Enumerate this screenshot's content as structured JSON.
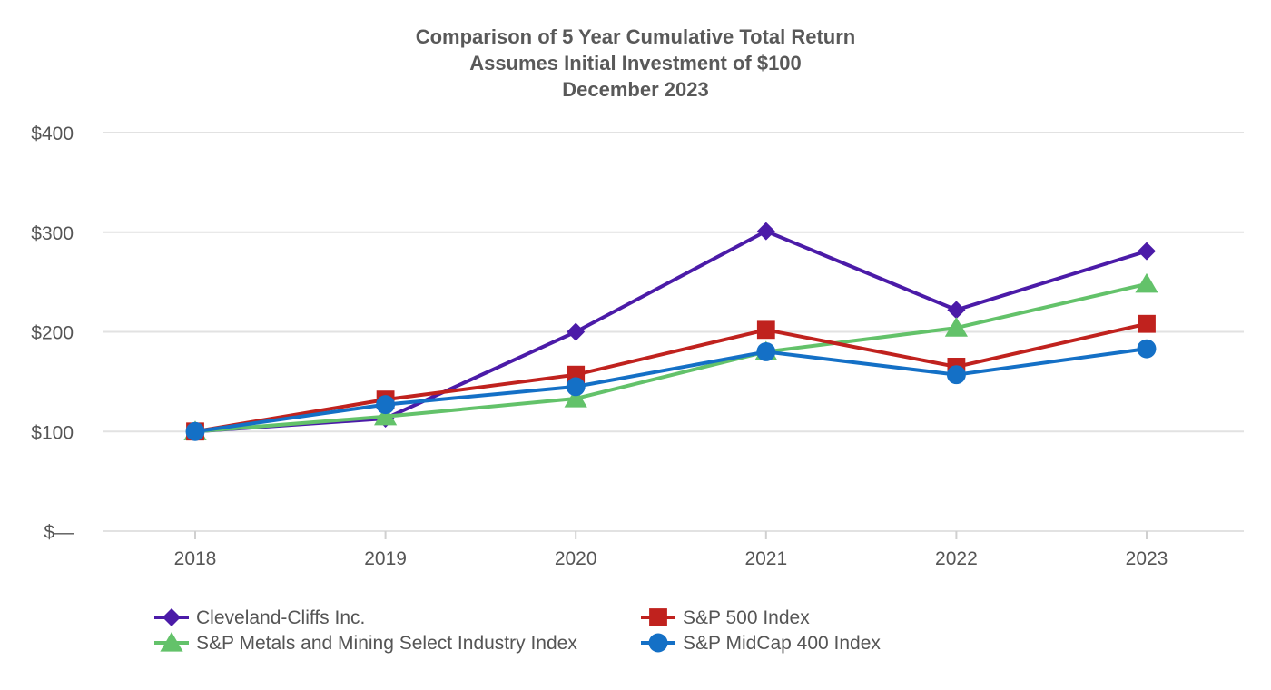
{
  "chart_data": {
    "type": "line",
    "title": "Comparison of 5 Year Cumulative Total Return",
    "subtitle": "Assumes Initial Investment of $100",
    "subtitle2": "December 2023",
    "xlabel": "",
    "ylabel": "",
    "categories": [
      "2018",
      "2019",
      "2020",
      "2021",
      "2022",
      "2023"
    ],
    "ylim": [
      0,
      400
    ],
    "yticks": [
      0,
      100,
      200,
      300,
      400
    ],
    "ytick_labels": [
      "$—",
      "$100",
      "$200",
      "$300",
      "$400"
    ],
    "grid": true,
    "legend_position": "bottom",
    "series": [
      {
        "name": "Cleveland-Cliffs Inc.",
        "color": "#4b1ba8",
        "marker": "diamond",
        "values": [
          100,
          113,
          200,
          301,
          222,
          281
        ]
      },
      {
        "name": "S&P 500 Index",
        "color": "#c0221e",
        "marker": "square",
        "values": [
          100,
          132,
          157,
          202,
          165,
          208
        ]
      },
      {
        "name": "S&P Metals and Mining Select Industry Index",
        "color": "#63c26a",
        "marker": "triangle",
        "values": [
          100,
          115,
          133,
          180,
          204,
          248
        ]
      },
      {
        "name": "S&P MidCap 400 Index",
        "color": "#1470c6",
        "marker": "circle",
        "values": [
          100,
          127,
          145,
          180,
          157,
          183
        ]
      }
    ]
  }
}
